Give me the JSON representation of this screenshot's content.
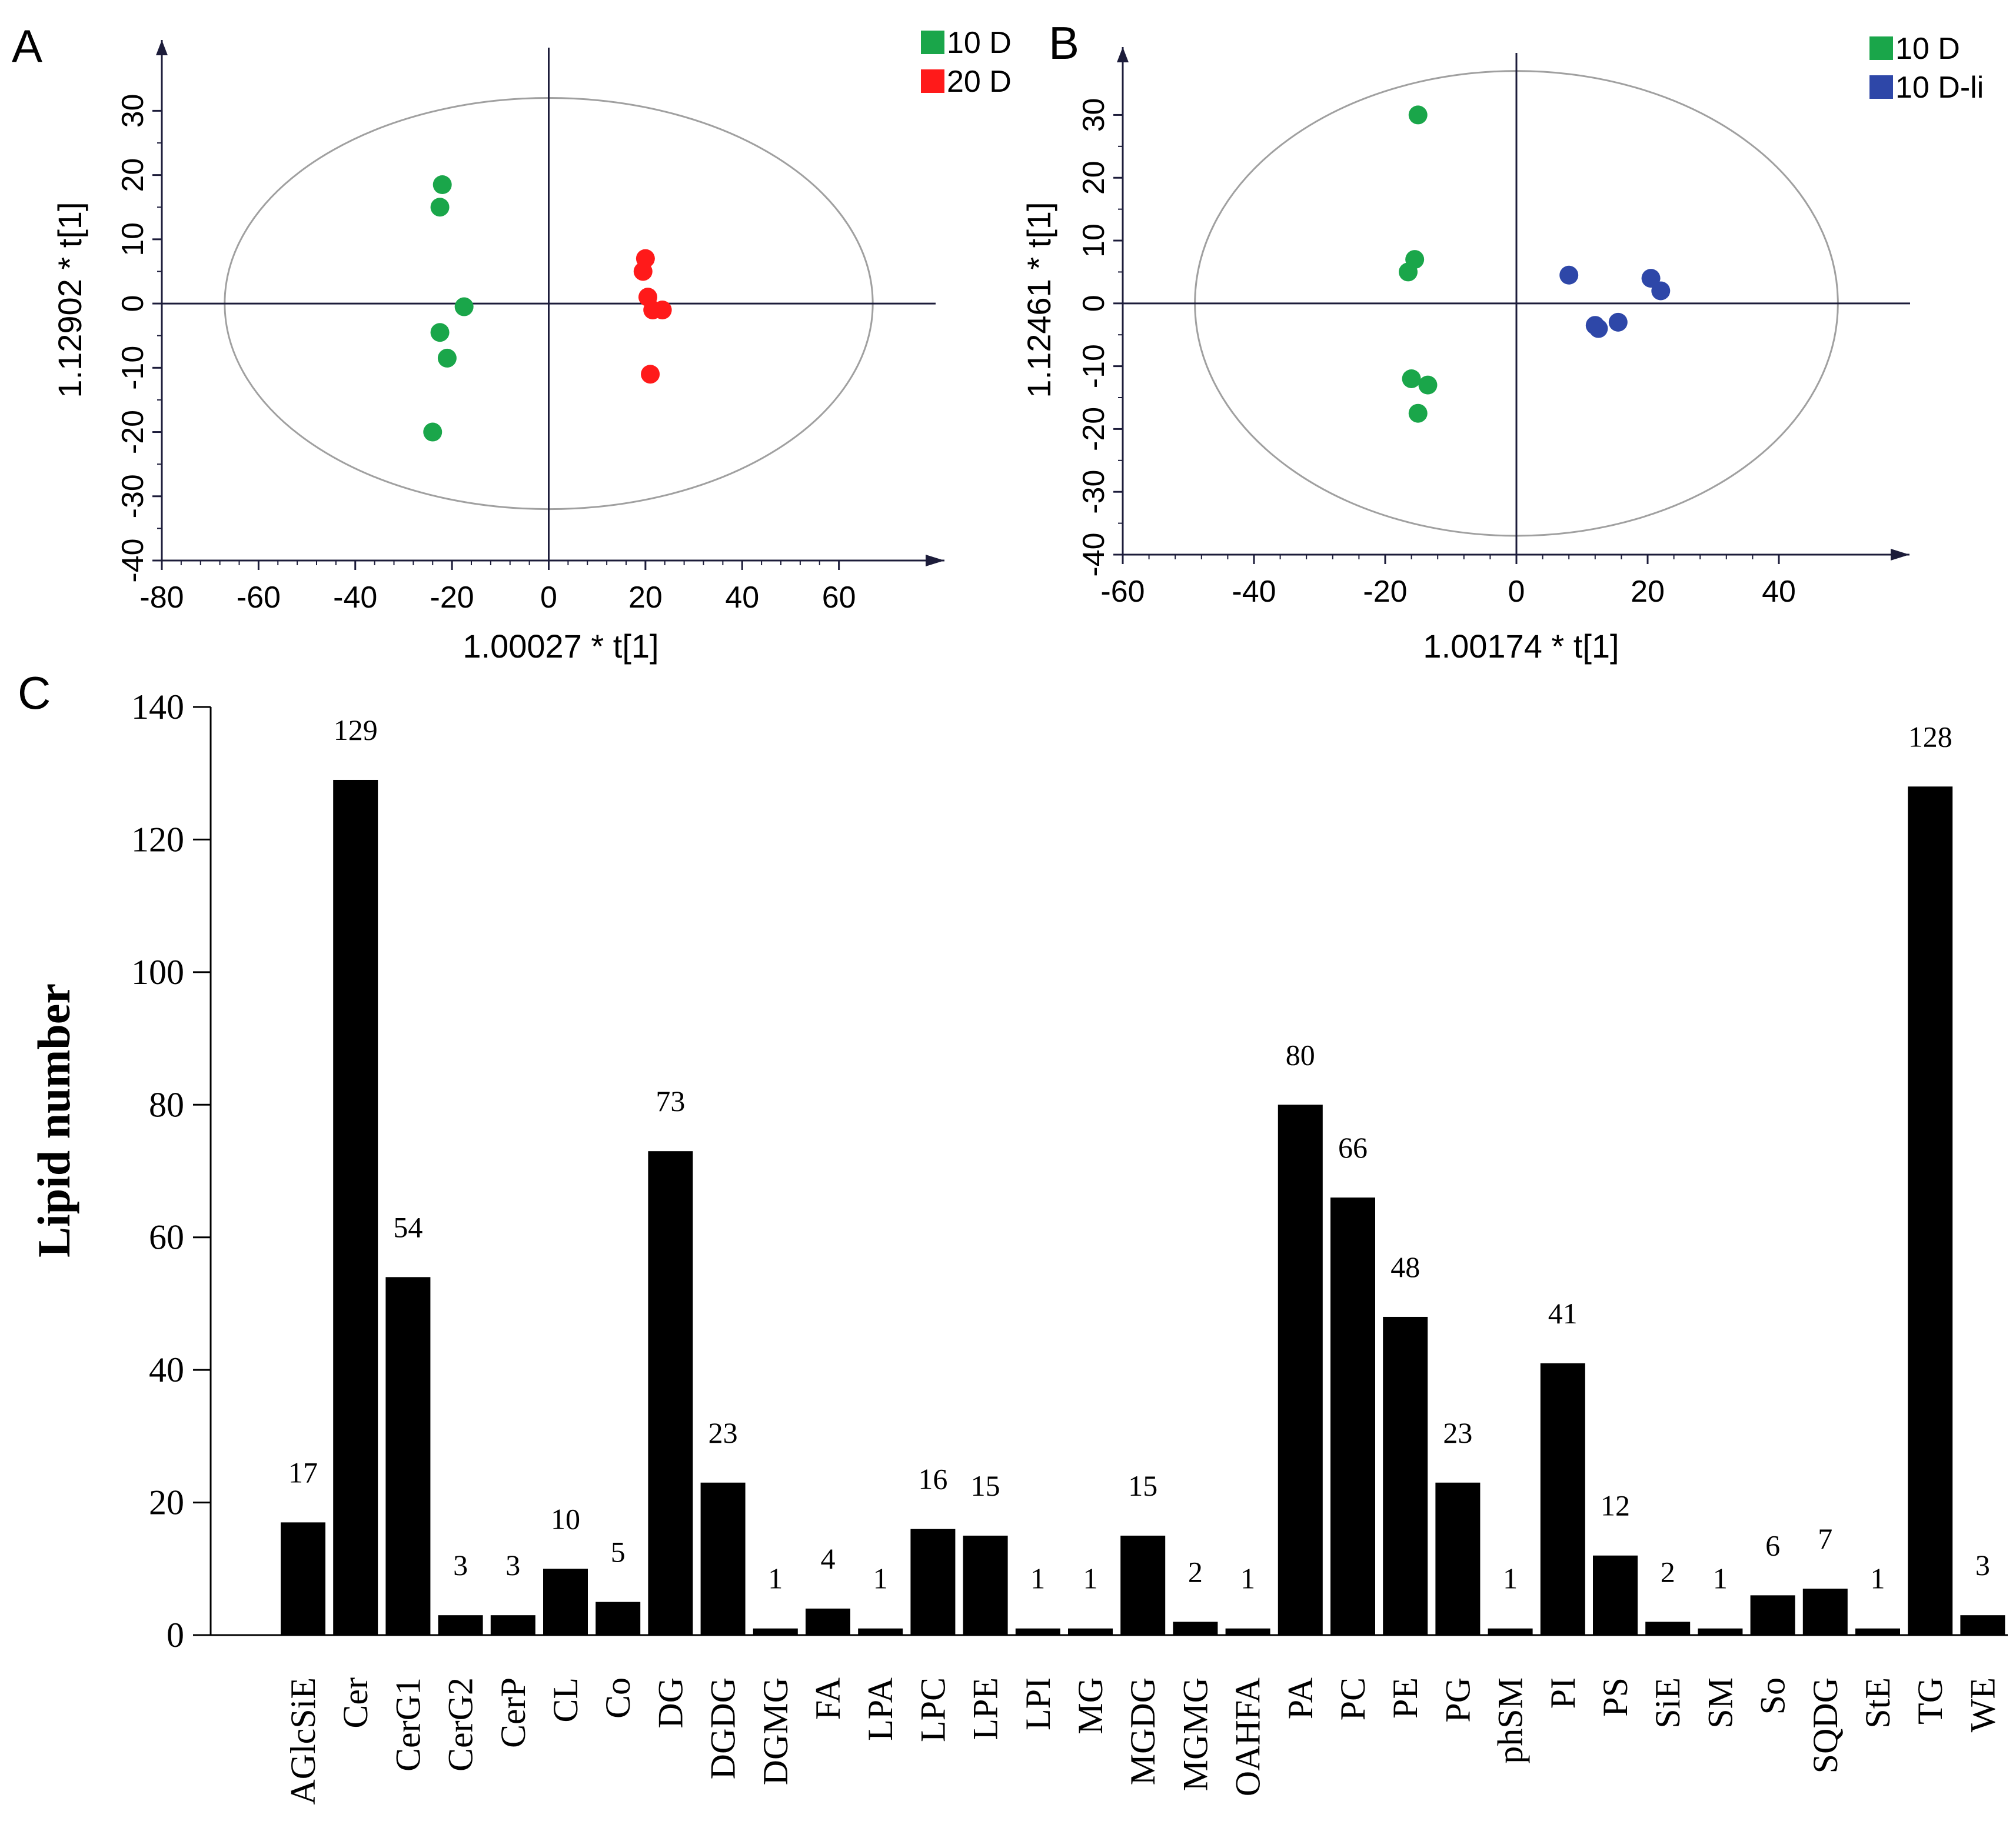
{
  "figure": {
    "panels": [
      {
        "letter": "A"
      },
      {
        "letter": "B"
      },
      {
        "letter": "C"
      }
    ]
  },
  "chart_data": [
    {
      "panel": "A",
      "type": "scatter",
      "title": "",
      "xlabel": "1.00027 * t[1]",
      "ylabel": "1.12902 * t[1]",
      "xlim": [
        -80,
        80
      ],
      "ylim": [
        -40,
        38
      ],
      "xticks": [
        -80,
        -60,
        -40,
        -20,
        0,
        20,
        40,
        60
      ],
      "yticks": [
        -40,
        -30,
        -20,
        -10,
        0,
        10,
        20,
        30
      ],
      "ellipse": {
        "center": [
          0,
          0
        ],
        "rx": 67,
        "ry": 32
      },
      "legend": "top-right",
      "series": [
        {
          "name": "10 D",
          "color": "#1aa64a",
          "points": [
            [
              -22,
              18.5
            ],
            [
              -22.5,
              15
            ],
            [
              -17.5,
              -0.5
            ],
            [
              -22.5,
              -4.5
            ],
            [
              -21,
              -8.5
            ],
            [
              -24,
              -20
            ]
          ]
        },
        {
          "name": "20 D",
          "color": "#ff1a1a",
          "points": [
            [
              20,
              7
            ],
            [
              19.5,
              5
            ],
            [
              20.5,
              1
            ],
            [
              21.5,
              -1
            ],
            [
              23.5,
              -1
            ],
            [
              21,
              -11
            ]
          ]
        }
      ]
    },
    {
      "panel": "B",
      "type": "scatter",
      "title": "",
      "xlabel": "1.00174 * t[1]",
      "ylabel": "1.12461 * t[1]",
      "xlim": [
        -60,
        60
      ],
      "ylim": [
        -40,
        38
      ],
      "xticks": [
        -60,
        -40,
        -20,
        0,
        20,
        40
      ],
      "yticks": [
        -40,
        -30,
        -20,
        -10,
        0,
        10,
        20,
        30
      ],
      "ellipse": {
        "center": [
          0,
          0
        ],
        "rx": 49,
        "ry": 37
      },
      "legend": "top-right",
      "series": [
        {
          "name": "10 D",
          "color": "#1aa64a",
          "points": [
            [
              -15,
              30
            ],
            [
              -15.5,
              7
            ],
            [
              -16.5,
              5
            ],
            [
              -16,
              -12
            ],
            [
              -13.5,
              -13
            ],
            [
              -15,
              -17.5
            ]
          ]
        },
        {
          "name": "10 D-li",
          "color": "#2e47a8",
          "points": [
            [
              8,
              4.5
            ],
            [
              12,
              -3.5
            ],
            [
              12.5,
              -4
            ],
            [
              15.5,
              -3
            ],
            [
              20.5,
              4
            ],
            [
              22,
              2
            ]
          ]
        }
      ]
    },
    {
      "panel": "C",
      "type": "bar",
      "title": "",
      "xlabel": "",
      "ylabel": "Lipid number",
      "ylim": [
        0,
        140
      ],
      "yticks": [
        0,
        20,
        40,
        60,
        80,
        100,
        120,
        140
      ],
      "color": "#000000",
      "categories": [
        "AGlcSiE",
        "Cer",
        "CerG1",
        "CerG2",
        "CerP",
        "CL",
        "Co",
        "DG",
        "DGDG",
        "DGMG",
        "FA",
        "LPA",
        "LPC",
        "LPE",
        "LPI",
        "MG",
        "MGDG",
        "MGMG",
        "OAHFA",
        "PA",
        "PC",
        "PE",
        "PG",
        "phSM",
        "PI",
        "PS",
        "SiE",
        "SM",
        "So",
        "SQDG",
        "StE",
        "TG",
        "WE"
      ],
      "values": [
        17,
        129,
        54,
        3,
        3,
        10,
        5,
        73,
        23,
        1,
        4,
        1,
        16,
        15,
        1,
        1,
        15,
        2,
        1,
        80,
        66,
        48,
        23,
        1,
        41,
        12,
        2,
        1,
        6,
        7,
        1,
        128,
        3
      ]
    }
  ]
}
